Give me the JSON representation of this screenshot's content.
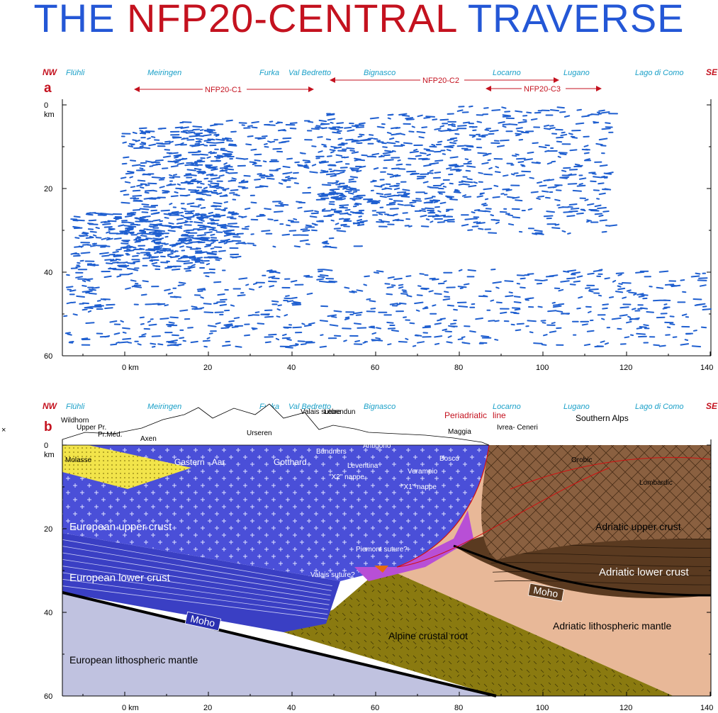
{
  "title": {
    "part1": "THE ",
    "part2": "NFP20-CENTRAL",
    "part3": " TRAVERSE"
  },
  "colors": {
    "title_blue": "#2457d6",
    "title_red": "#c4121f",
    "reflector": "#1f5fd0",
    "location_label": "#1aa0c8",
    "european_upper_crust": "#4a4fd8",
    "european_lower_crust": "#3a3fc4",
    "european_mantle": "#c0c2e0",
    "alpine_root": "#8a7a10",
    "adriatic_upper_crust": "#8a6040",
    "adriatic_lower_crust": "#5a3a20",
    "adriatic_mantle": "#e8b898",
    "molasse": "#f2e44a",
    "piemont": "#b84fd6"
  },
  "ends": {
    "nw": "NW",
    "se": "SE"
  },
  "locations": [
    "Flühli",
    "Meiringen",
    "Furka",
    "Val Bedretto",
    "Bignasco",
    "Locarno",
    "Lugano",
    "Lago di Como"
  ],
  "panels": {
    "a": "a",
    "b": "b"
  },
  "profiles": [
    "NFP20-C1",
    "NFP20-C2",
    "NFP20-C3"
  ],
  "axes": {
    "y_unit": "km",
    "x_unit": "km",
    "y_ticks": [
      "0",
      "20",
      "40",
      "60"
    ],
    "x_ticks": [
      "0 km",
      "20",
      "40",
      "60",
      "80",
      "100",
      "120",
      "140"
    ]
  },
  "units": {
    "eu_upper": "European upper crust",
    "eu_lower": "European lower crust",
    "eu_mantle": "European lithospheric mantle",
    "moho": "Moho",
    "alpine_root": "Alpine crustal root",
    "ad_upper": "Adriatic upper crust",
    "ad_lower": "Adriatic lower crust",
    "ad_mantle": "Adriatic lithospheric mantle",
    "southern_alps": "Southern Alps",
    "periadriatic": "Periadriatic",
    "line": "line"
  },
  "geo_labels": {
    "wildhorn": "Wildhorn",
    "upper_pr": "Upper Pr.",
    "pr_med": "Pr.Méd.",
    "axen": "Axen",
    "molasse": "Molasse",
    "gastern_aar": "Gastern - Aar",
    "urseren": "Urseren",
    "gotthard": "Gotthard",
    "valais_suture": "Valais\nsuture",
    "lebendun": "Lebendun",
    "bundners": "Bündners",
    "antigorio": "Antigorio",
    "bosco": "Bosco",
    "leventina": "Leventina",
    "maggia": "Maggia",
    "verampio": "Verampio",
    "x2_nappe": "\"X2\" nappe",
    "x1_nappe": "\"X1\" nappe",
    "ivrea_ceneri": "Ivrea-\nCeneri",
    "orobic": "Orobic",
    "lombardic": "Lombardic",
    "piemont_suture": "Piemont\nsuture?",
    "valais_suture_q": "Valais\nsuture?"
  },
  "edge_mark": "×"
}
